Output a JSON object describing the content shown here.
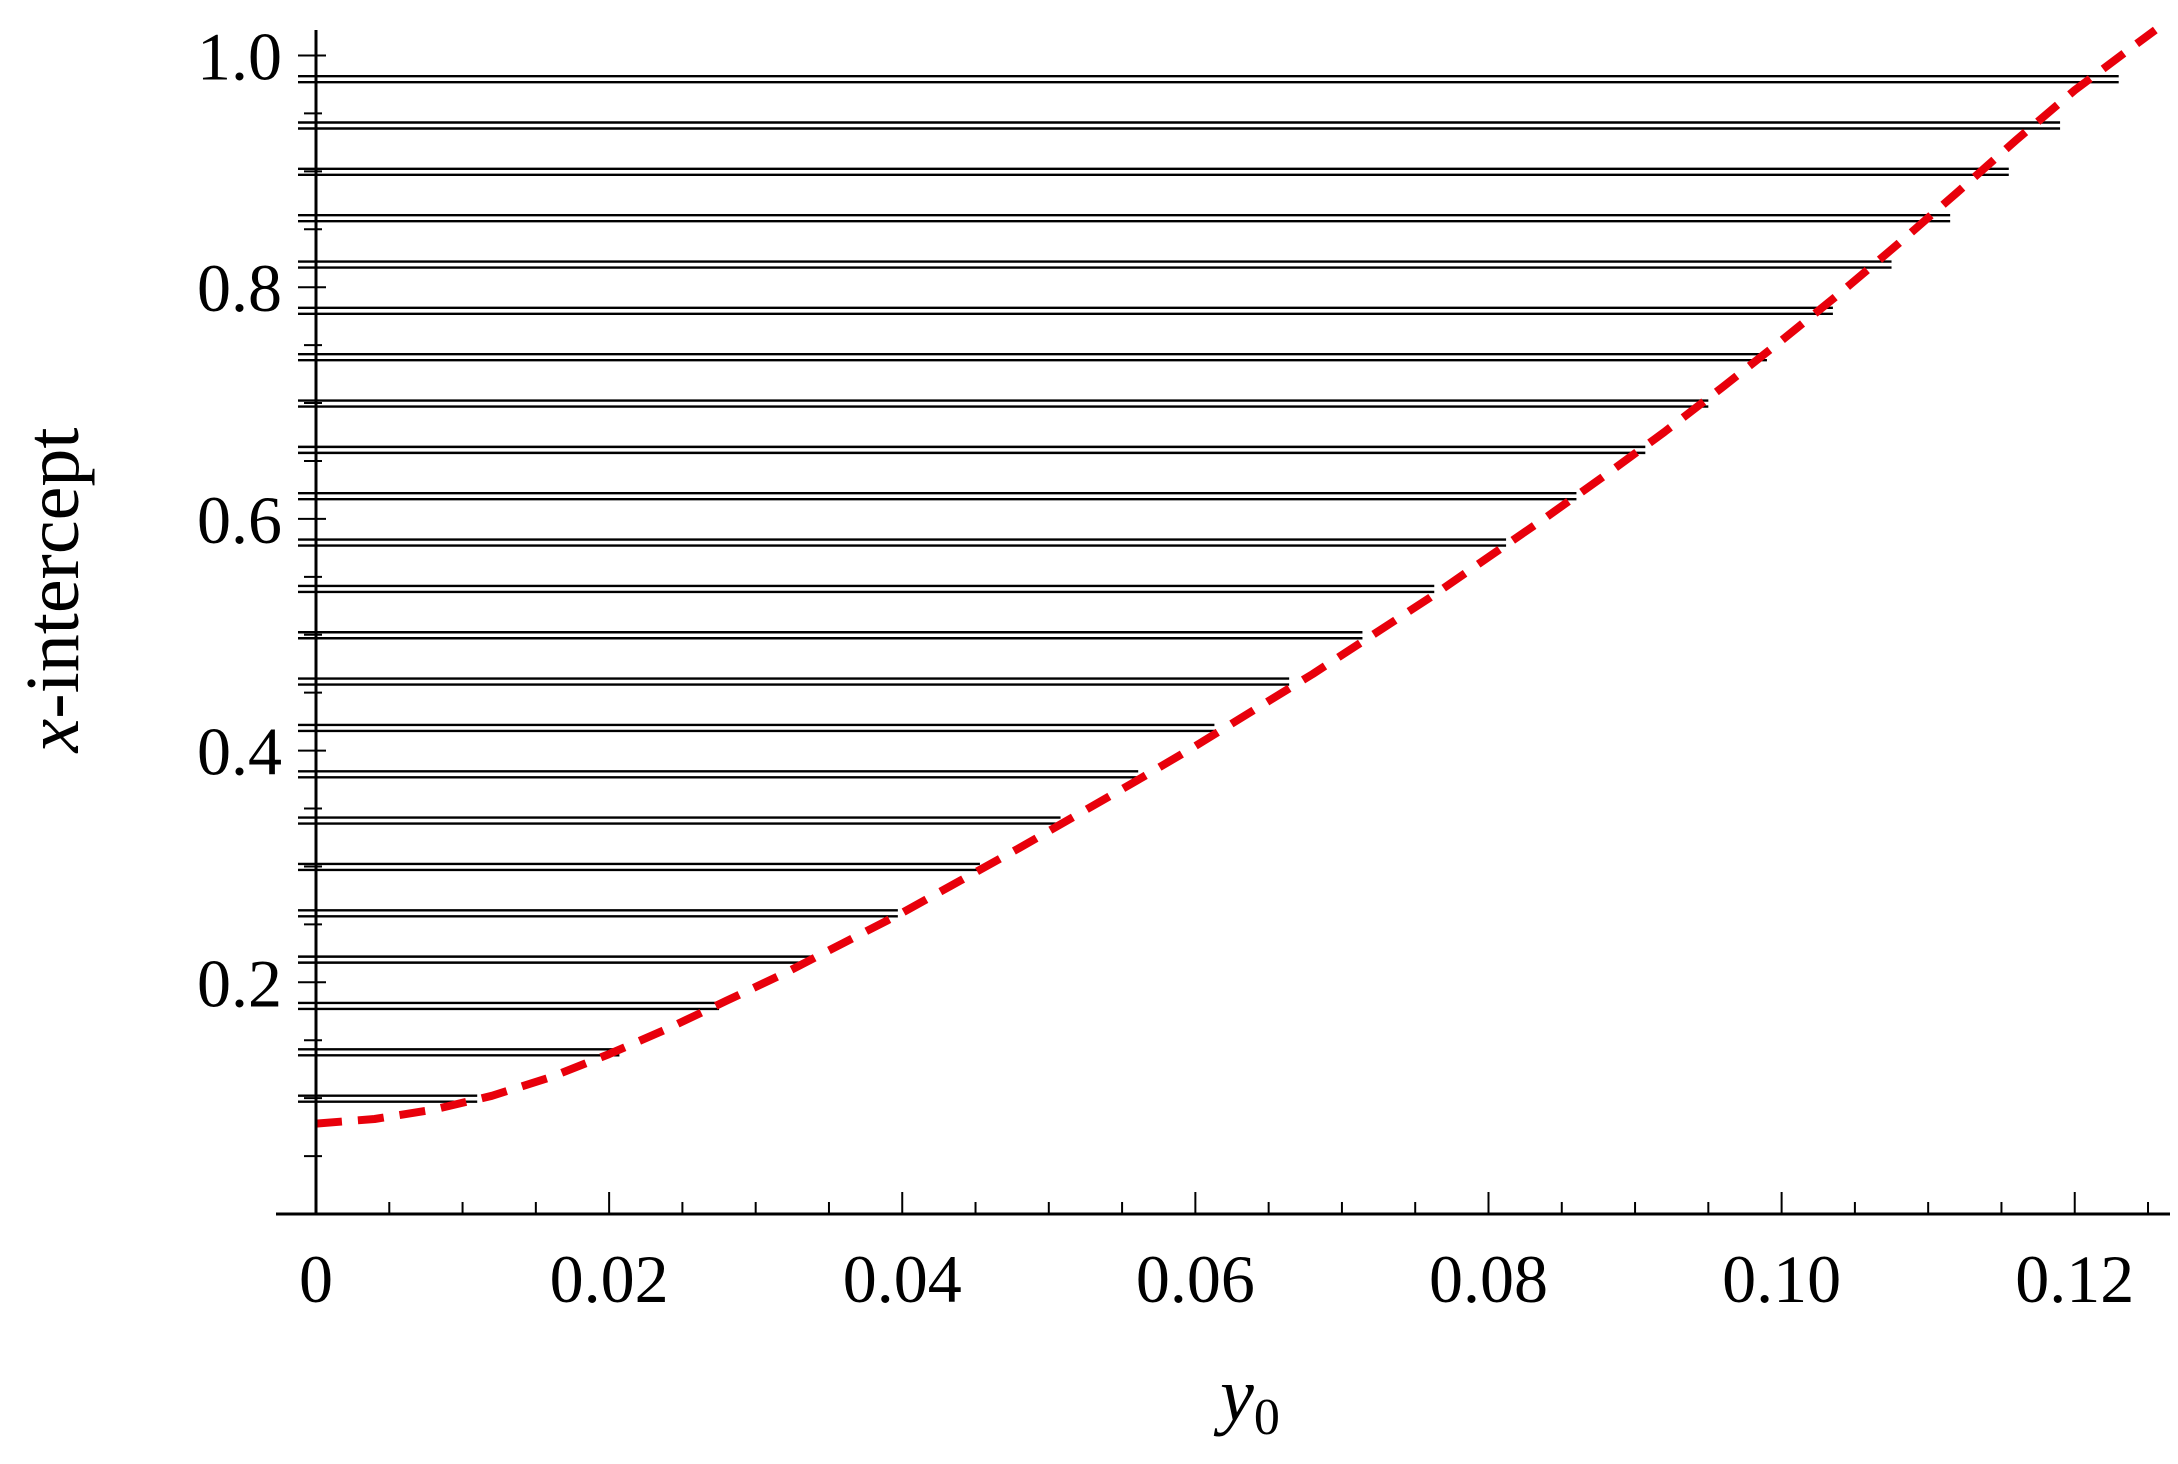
{
  "chart_data": {
    "type": "line",
    "title": "",
    "xlabel": "y",
    "xlabel_subscript": "0",
    "ylabel_var": "x",
    "ylabel": "-intercept",
    "xlim": [
      0,
      0.1265
    ],
    "ylim": [
      0,
      1.022
    ],
    "x_ticks": [
      0,
      0.02,
      0.04,
      0.06,
      0.08,
      0.1,
      0.12
    ],
    "x_tick_labels": [
      "0",
      "0.02",
      "0.04",
      "0.06",
      "0.08",
      "0.10",
      "0.12"
    ],
    "x_minor_step": 0.005,
    "y_ticks": [
      0.2,
      0.4,
      0.6,
      0.8,
      1.0
    ],
    "y_tick_labels": [
      "0.2",
      "0.4",
      "0.6",
      "0.8",
      "1.0"
    ],
    "y_minor_step": 0.05,
    "grid": false,
    "legend": "none",
    "colors": {
      "segments": "#000000",
      "curve": "#e8000b"
    },
    "series": [
      {
        "type": "segments",
        "segments": [
          {
            "y": 0.1,
            "x_end": 0.011
          },
          {
            "y": 0.14,
            "x_end": 0.0207
          },
          {
            "y": 0.18,
            "x_end": 0.0275
          },
          {
            "y": 0.22,
            "x_end": 0.0338
          },
          {
            "y": 0.26,
            "x_end": 0.0397
          },
          {
            "y": 0.3,
            "x_end": 0.0453
          },
          {
            "y": 0.34,
            "x_end": 0.0508
          },
          {
            "y": 0.38,
            "x_end": 0.0561
          },
          {
            "y": 0.42,
            "x_end": 0.0613
          },
          {
            "y": 0.46,
            "x_end": 0.0664
          },
          {
            "y": 0.5,
            "x_end": 0.0714
          },
          {
            "y": 0.54,
            "x_end": 0.0763
          },
          {
            "y": 0.58,
            "x_end": 0.0812
          },
          {
            "y": 0.62,
            "x_end": 0.086
          },
          {
            "y": 0.66,
            "x_end": 0.0907
          },
          {
            "y": 0.7,
            "x_end": 0.095
          },
          {
            "y": 0.74,
            "x_end": 0.099
          },
          {
            "y": 0.78,
            "x_end": 0.1035
          },
          {
            "y": 0.82,
            "x_end": 0.1075
          },
          {
            "y": 0.86,
            "x_end": 0.1115
          },
          {
            "y": 0.9,
            "x_end": 0.1155
          },
          {
            "y": 0.94,
            "x_end": 0.119
          },
          {
            "y": 0.98,
            "x_end": 0.123
          }
        ]
      },
      {
        "type": "dashed-line",
        "x": [
          0,
          0.004,
          0.008,
          0.012,
          0.016,
          0.02,
          0.024,
          0.028,
          0.032,
          0.036,
          0.04,
          0.044,
          0.048,
          0.052,
          0.056,
          0.06,
          0.064,
          0.068,
          0.072,
          0.076,
          0.08,
          0.084,
          0.088,
          0.092,
          0.096,
          0.1,
          0.104,
          0.108,
          0.112,
          0.116,
          0.12,
          0.124,
          0.1255
        ],
        "y": [
          0.078,
          0.082,
          0.09,
          0.102,
          0.118,
          0.138,
          0.16,
          0.184,
          0.208,
          0.234,
          0.26,
          0.288,
          0.316,
          0.345,
          0.374,
          0.404,
          0.435,
          0.466,
          0.499,
          0.532,
          0.567,
          0.602,
          0.638,
          0.675,
          0.714,
          0.754,
          0.795,
          0.838,
          0.882,
          0.927,
          0.97,
          1.008,
          1.022
        ]
      }
    ]
  }
}
